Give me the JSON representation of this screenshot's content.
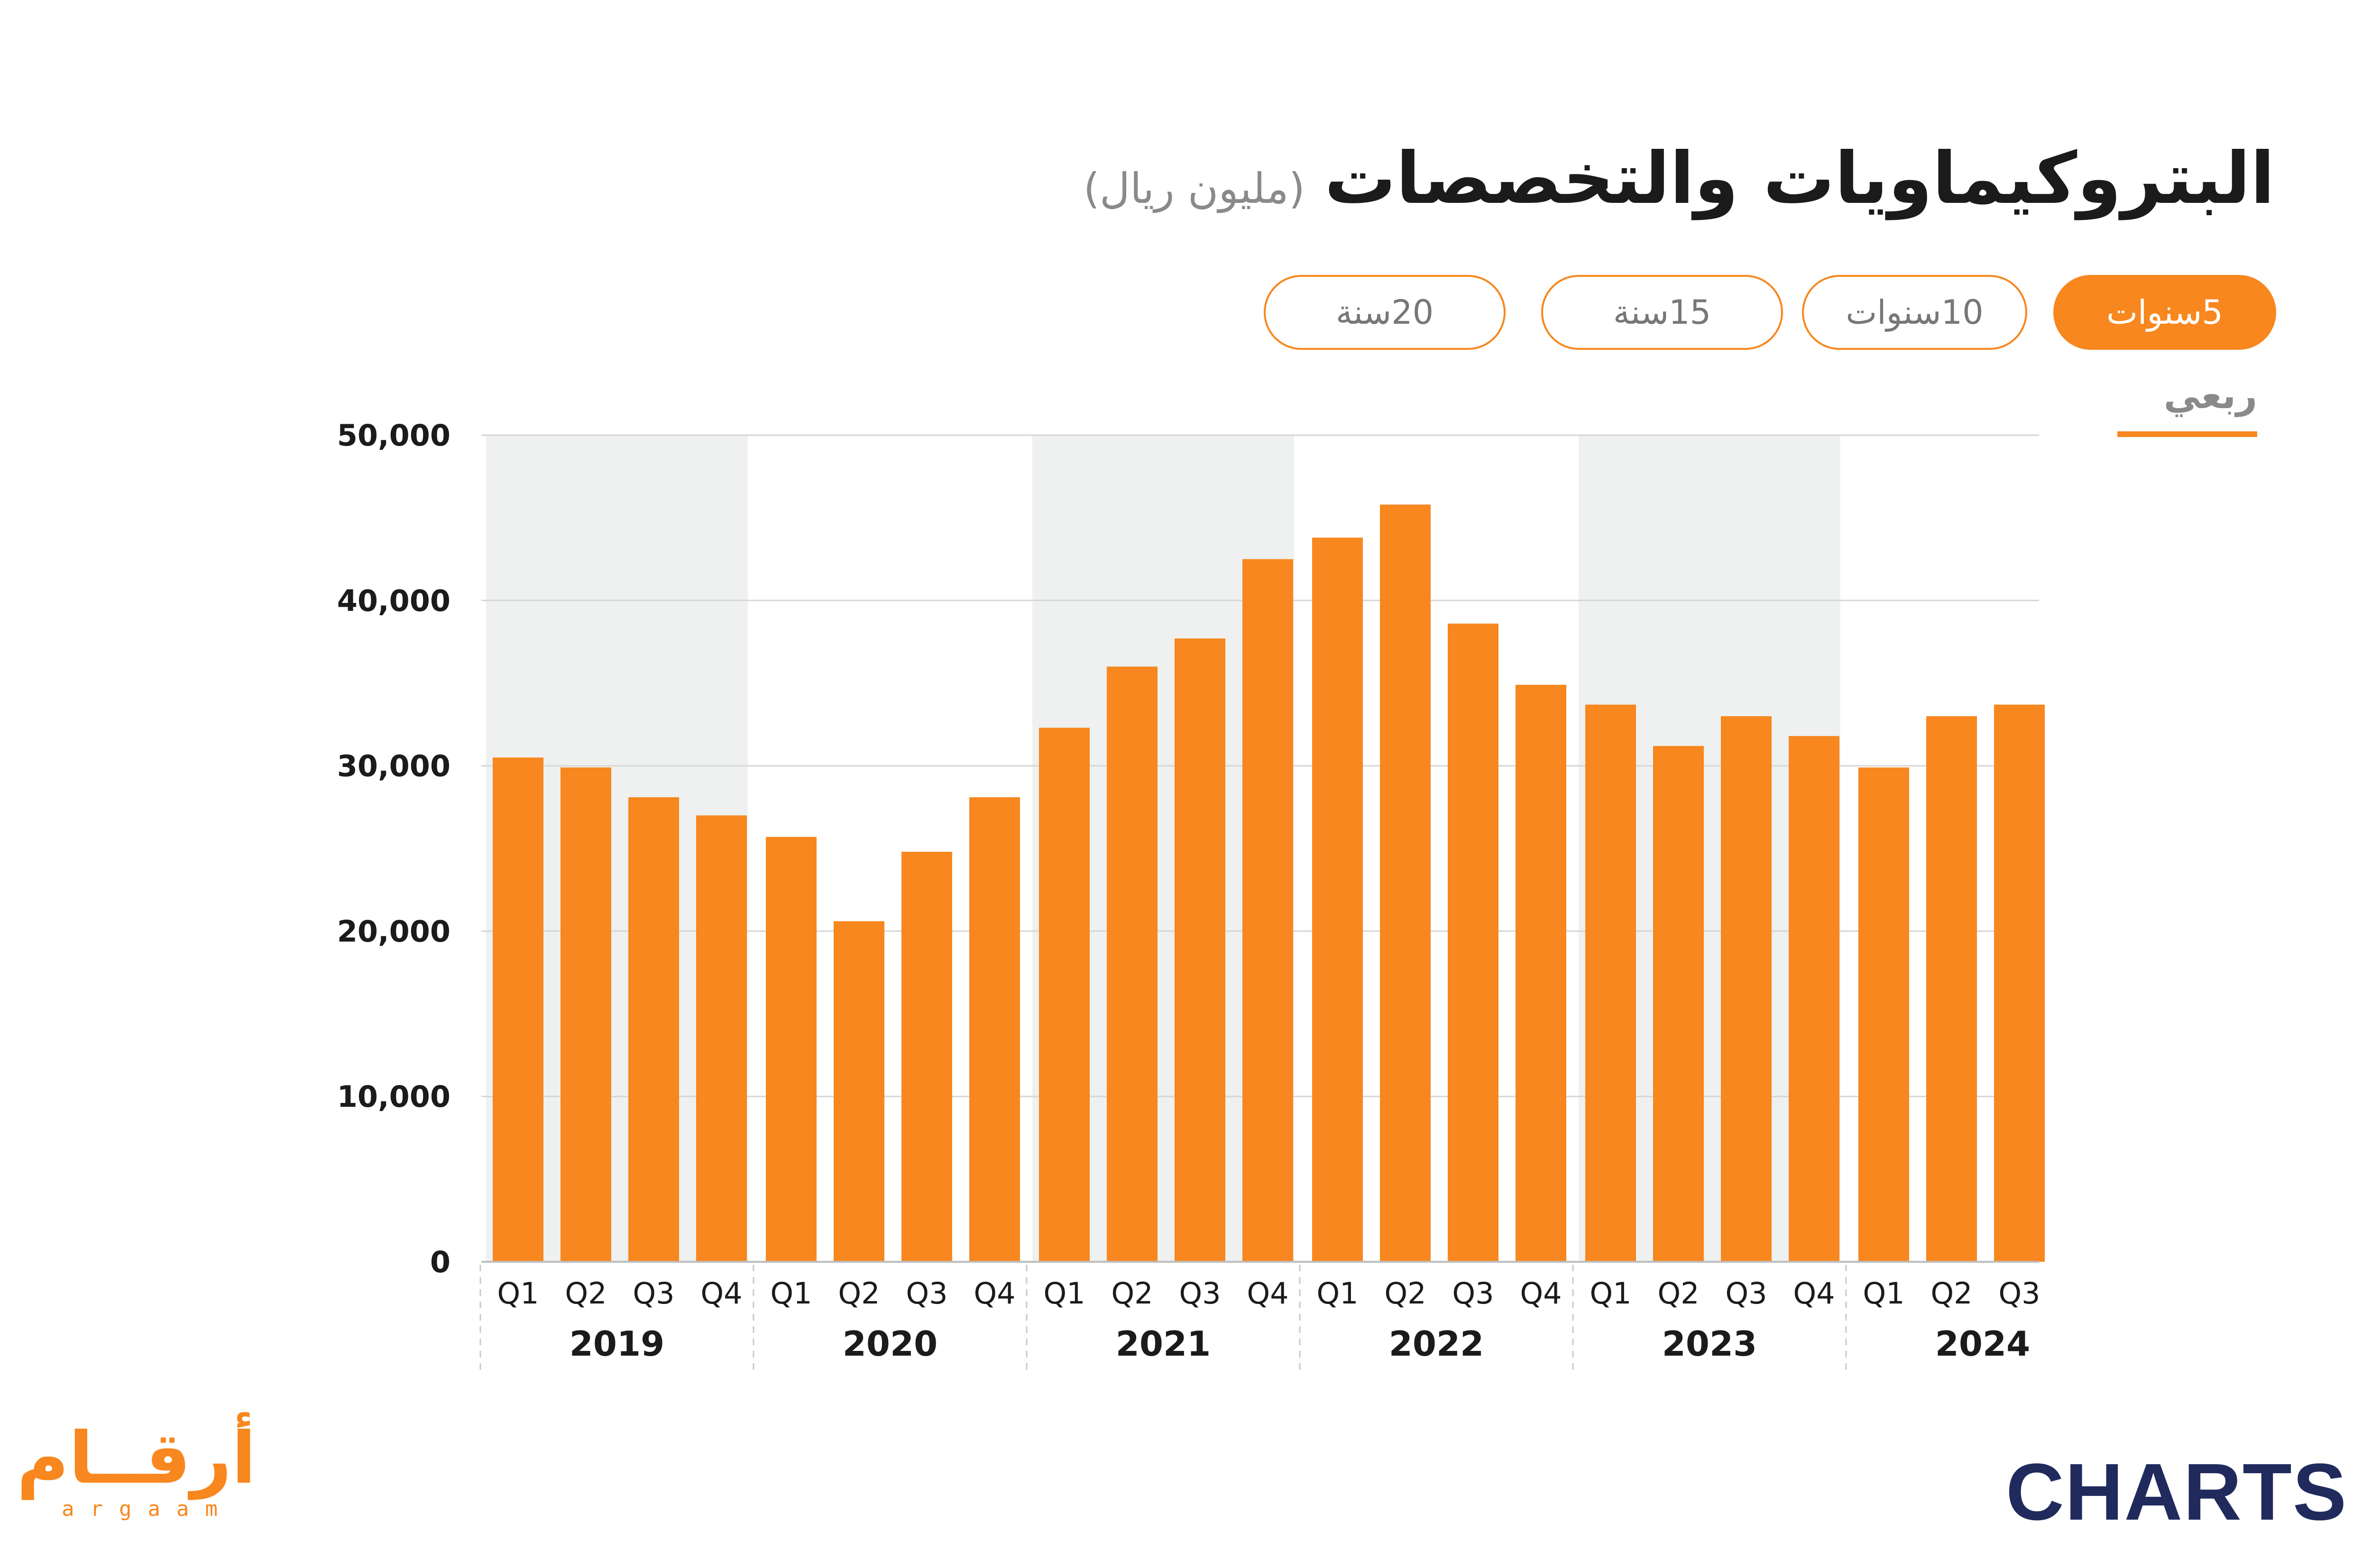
{
  "header": {
    "title": "البتروكيماويات والتخصصات",
    "unit": "(مليون ريال)"
  },
  "range_buttons": [
    {
      "label": "5سنوات",
      "active": true
    },
    {
      "label": "10سنوات",
      "active": false
    },
    {
      "label": "15سنة",
      "active": false
    },
    {
      "label": "20سنة",
      "active": false
    }
  ],
  "period": {
    "label": "ربعي"
  },
  "colors": {
    "bar": "#f7871e",
    "band": "#eef1f0",
    "grid": "#d6d6d6",
    "text": "#1b1b1b",
    "charts_logo": "#202a5c"
  },
  "chart_data": {
    "type": "bar",
    "ylim": [
      0,
      50000
    ],
    "yticks": [
      0,
      10000,
      20000,
      30000,
      40000,
      50000
    ],
    "ytick_labels": [
      "0",
      "10,000",
      "20,000",
      "30,000",
      "40,000",
      "50,000"
    ],
    "groups": [
      {
        "year": "2019",
        "quarters": [
          "Q1",
          "Q2",
          "Q3",
          "Q4"
        ],
        "values": [
          30500,
          29900,
          28100,
          27000
        ],
        "shaded": true
      },
      {
        "year": "2020",
        "quarters": [
          "Q1",
          "Q2",
          "Q3",
          "Q4"
        ],
        "values": [
          25700,
          20600,
          24800,
          28100
        ],
        "shaded": false
      },
      {
        "year": "2021",
        "quarters": [
          "Q1",
          "Q2",
          "Q3",
          "Q4"
        ],
        "values": [
          32300,
          36000,
          37700,
          42500
        ],
        "shaded": true
      },
      {
        "year": "2022",
        "quarters": [
          "Q1",
          "Q2",
          "Q3",
          "Q4"
        ],
        "values": [
          43800,
          45800,
          38600,
          34900
        ],
        "shaded": false
      },
      {
        "year": "2023",
        "quarters": [
          "Q1",
          "Q2",
          "Q3",
          "Q4"
        ],
        "values": [
          33700,
          31200,
          33000,
          31800
        ],
        "shaded": true
      },
      {
        "year": "2024",
        "quarters": [
          "Q1",
          "Q2",
          "Q3"
        ],
        "values": [
          29900,
          33000,
          33700
        ],
        "shaded": false
      }
    ],
    "grid": true
  },
  "logos": {
    "arqaam_ar": "أرقــام",
    "arqaam_en": "argaam",
    "charts": "CHARTS"
  }
}
